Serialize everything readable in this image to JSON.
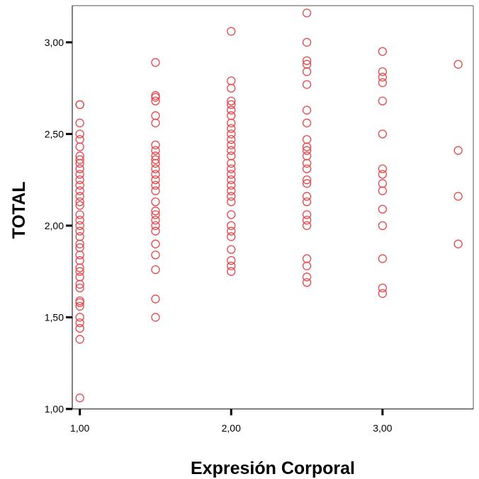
{
  "chart_data": {
    "type": "scatter",
    "title": "",
    "xlabel": "Expresión Corporal",
    "ylabel": "TOTAL",
    "xlim": [
      0.95,
      3.6
    ],
    "ylim": [
      1.0,
      3.2
    ],
    "x_ticks": [
      1.0,
      2.0,
      3.0
    ],
    "y_ticks": [
      1.0,
      1.5,
      2.0,
      2.5,
      3.0
    ],
    "x_tick_labels": [
      "1,00",
      "2,00",
      "3,00"
    ],
    "y_tick_labels": [
      "1,00",
      "1,50",
      "2,00",
      "2,50",
      "3,00"
    ],
    "grid": false,
    "legend": "none",
    "marker": "open-circle",
    "marker_color": "#e8454b",
    "series": [
      {
        "points": [
          [
            1.0,
            2.66
          ],
          [
            1.0,
            2.66
          ],
          [
            1.0,
            2.56
          ],
          [
            1.0,
            2.5
          ],
          [
            1.0,
            2.47
          ],
          [
            1.0,
            2.43
          ],
          [
            1.0,
            2.38
          ],
          [
            1.0,
            2.36
          ],
          [
            1.0,
            2.34
          ],
          [
            1.0,
            2.31
          ],
          [
            1.0,
            2.28
          ],
          [
            1.0,
            2.25
          ],
          [
            1.0,
            2.22
          ],
          [
            1.0,
            2.19
          ],
          [
            1.0,
            2.16
          ],
          [
            1.0,
            2.13
          ],
          [
            1.0,
            2.11
          ],
          [
            1.0,
            2.06
          ],
          [
            1.0,
            2.03
          ],
          [
            1.0,
            2.0
          ],
          [
            1.0,
            1.97
          ],
          [
            1.0,
            1.94
          ],
          [
            1.0,
            1.9
          ],
          [
            1.0,
            1.88
          ],
          [
            1.0,
            1.84
          ],
          [
            1.0,
            1.81
          ],
          [
            1.0,
            1.77
          ],
          [
            1.0,
            1.75
          ],
          [
            1.0,
            1.72
          ],
          [
            1.0,
            1.68
          ],
          [
            1.0,
            1.66
          ],
          [
            1.0,
            1.59
          ],
          [
            1.0,
            1.58
          ],
          [
            1.0,
            1.56
          ],
          [
            1.0,
            1.5
          ],
          [
            1.0,
            1.47
          ],
          [
            1.0,
            1.44
          ],
          [
            1.0,
            1.38
          ],
          [
            1.0,
            1.06
          ],
          [
            1.5,
            2.89
          ],
          [
            1.5,
            2.71
          ],
          [
            1.5,
            2.7
          ],
          [
            1.5,
            2.68
          ],
          [
            1.5,
            2.6
          ],
          [
            1.5,
            2.56
          ],
          [
            1.5,
            2.44
          ],
          [
            1.5,
            2.41
          ],
          [
            1.5,
            2.38
          ],
          [
            1.5,
            2.36
          ],
          [
            1.5,
            2.34
          ],
          [
            1.5,
            2.31
          ],
          [
            1.5,
            2.28
          ],
          [
            1.5,
            2.25
          ],
          [
            1.5,
            2.22
          ],
          [
            1.5,
            2.19
          ],
          [
            1.5,
            2.13
          ],
          [
            1.5,
            2.08
          ],
          [
            1.5,
            2.06
          ],
          [
            1.5,
            2.03
          ],
          [
            1.5,
            2.0
          ],
          [
            1.5,
            1.97
          ],
          [
            1.5,
            1.9
          ],
          [
            1.5,
            1.84
          ],
          [
            1.5,
            1.76
          ],
          [
            1.5,
            1.6
          ],
          [
            1.5,
            1.5
          ],
          [
            2.0,
            3.06
          ],
          [
            2.0,
            2.79
          ],
          [
            2.0,
            2.75
          ],
          [
            2.0,
            2.68
          ],
          [
            2.0,
            2.66
          ],
          [
            2.0,
            2.63
          ],
          [
            2.0,
            2.6
          ],
          [
            2.0,
            2.56
          ],
          [
            2.0,
            2.53
          ],
          [
            2.0,
            2.5
          ],
          [
            2.0,
            2.47
          ],
          [
            2.0,
            2.44
          ],
          [
            2.0,
            2.41
          ],
          [
            2.0,
            2.38
          ],
          [
            2.0,
            2.34
          ],
          [
            2.0,
            2.31
          ],
          [
            2.0,
            2.28
          ],
          [
            2.0,
            2.25
          ],
          [
            2.0,
            2.22
          ],
          [
            2.0,
            2.19
          ],
          [
            2.0,
            2.16
          ],
          [
            2.0,
            2.13
          ],
          [
            2.0,
            2.06
          ],
          [
            2.0,
            2.0
          ],
          [
            2.0,
            1.97
          ],
          [
            2.0,
            1.94
          ],
          [
            2.0,
            1.87
          ],
          [
            2.0,
            1.81
          ],
          [
            2.0,
            1.78
          ],
          [
            2.0,
            1.75
          ],
          [
            2.5,
            3.16
          ],
          [
            2.5,
            3.0
          ],
          [
            2.5,
            2.9
          ],
          [
            2.5,
            2.88
          ],
          [
            2.5,
            2.84
          ],
          [
            2.5,
            2.77
          ],
          [
            2.5,
            2.63
          ],
          [
            2.5,
            2.56
          ],
          [
            2.5,
            2.47
          ],
          [
            2.5,
            2.43
          ],
          [
            2.5,
            2.41
          ],
          [
            2.5,
            2.38
          ],
          [
            2.5,
            2.34
          ],
          [
            2.5,
            2.31
          ],
          [
            2.5,
            2.25
          ],
          [
            2.5,
            2.23
          ],
          [
            2.5,
            2.16
          ],
          [
            2.5,
            2.13
          ],
          [
            2.5,
            2.06
          ],
          [
            2.5,
            2.03
          ],
          [
            2.5,
            2.0
          ],
          [
            2.5,
            1.82
          ],
          [
            2.5,
            1.78
          ],
          [
            2.5,
            1.72
          ],
          [
            2.5,
            1.69
          ],
          [
            3.0,
            2.95
          ],
          [
            3.0,
            2.84
          ],
          [
            3.0,
            2.81
          ],
          [
            3.0,
            2.78
          ],
          [
            3.0,
            2.68
          ],
          [
            3.0,
            2.5
          ],
          [
            3.0,
            2.31
          ],
          [
            3.0,
            2.28
          ],
          [
            3.0,
            2.23
          ],
          [
            3.0,
            2.19
          ],
          [
            3.0,
            2.09
          ],
          [
            3.0,
            2.0
          ],
          [
            3.0,
            1.82
          ],
          [
            3.0,
            1.66
          ],
          [
            3.0,
            1.63
          ],
          [
            3.5,
            2.88
          ],
          [
            3.5,
            2.41
          ],
          [
            3.5,
            2.16
          ],
          [
            3.5,
            1.9
          ]
        ]
      }
    ]
  }
}
